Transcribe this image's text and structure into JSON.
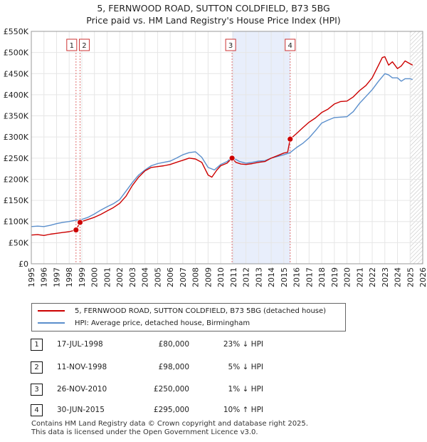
{
  "header": {
    "title_line1": "5, FERNWOOD ROAD, SUTTON COLDFIELD, B73 5BG",
    "title_line2": "Price paid vs. HM Land Registry's House Price Index (HPI)"
  },
  "legend": {
    "property_label": "5, FERNWOOD ROAD, SUTTON COLDFIELD, B73 5BG (detached house)",
    "hpi_label": "HPI: Average price, detached house, Birmingham"
  },
  "colors": {
    "property": "#cc0000",
    "hpi": "#5b8fcc",
    "shade": "#e8eefb",
    "marker_line": "#e07070",
    "grid": "#e6e6e6"
  },
  "transactions": [
    {
      "num": "1",
      "date": "17-JUL-1998",
      "price": "£80,000",
      "hpi": "23% ↓ HPI"
    },
    {
      "num": "2",
      "date": "11-NOV-1998",
      "price": "£98,000",
      "hpi": "5% ↓ HPI"
    },
    {
      "num": "3",
      "date": "26-NOV-2010",
      "price": "£250,000",
      "hpi": "1% ↓ HPI"
    },
    {
      "num": "4",
      "date": "30-JUN-2015",
      "price": "£295,000",
      "hpi": "10% ↑ HPI"
    }
  ],
  "footer": {
    "line1": "Contains HM Land Registry data © Crown copyright and database right 2025.",
    "line2": "This data is licensed under the Open Government Licence v3.0."
  },
  "chart_data": {
    "type": "line",
    "title": "5, FERNWOOD ROAD, SUTTON COLDFIELD, B73 5BG",
    "subtitle": "Price paid vs. HM Land Registry's House Price Index (HPI)",
    "xlabel": "",
    "ylabel": "",
    "xlim": [
      1995,
      2026
    ],
    "ylim": [
      0,
      550000
    ],
    "x_ticks": [
      1995,
      1996,
      1997,
      1998,
      1999,
      2000,
      2001,
      2002,
      2003,
      2004,
      2005,
      2006,
      2007,
      2008,
      2009,
      2010,
      2011,
      2012,
      2013,
      2014,
      2015,
      2016,
      2017,
      2018,
      2019,
      2020,
      2021,
      2022,
      2023,
      2024,
      2025,
      2026
    ],
    "y_ticks": [
      {
        "value": 0,
        "label": "£0"
      },
      {
        "value": 50000,
        "label": "£50K"
      },
      {
        "value": 100000,
        "label": "£100K"
      },
      {
        "value": 150000,
        "label": "£150K"
      },
      {
        "value": 200000,
        "label": "£200K"
      },
      {
        "value": 250000,
        "label": "£250K"
      },
      {
        "value": 300000,
        "label": "£300K"
      },
      {
        "value": 350000,
        "label": "£350K"
      },
      {
        "value": 400000,
        "label": "£400K"
      },
      {
        "value": 450000,
        "label": "£450K"
      },
      {
        "value": 500000,
        "label": "£500K"
      },
      {
        "value": 550000,
        "label": "£550K"
      }
    ],
    "grid": true,
    "shaded_span": [
      2010.9,
      2015.5
    ],
    "future_hatch_from": 2025.0,
    "sale_markers": [
      {
        "label": "1",
        "x": 1998.54,
        "y": 80000
      },
      {
        "label": "2",
        "x": 1998.86,
        "y": 98000
      },
      {
        "label": "3",
        "x": 2010.9,
        "y": 250000
      },
      {
        "label": "4",
        "x": 2015.5,
        "y": 295000
      }
    ],
    "series": [
      {
        "name": "5, FERNWOOD ROAD, SUTTON COLDFIELD, B73 5BG (detached house)",
        "x": [
          1995.0,
          1995.5,
          1996.0,
          1996.5,
          1997.0,
          1997.5,
          1998.0,
          1998.54,
          1998.86,
          1999.0,
          1999.5,
          2000.0,
          2000.5,
          2001.0,
          2001.5,
          2002.0,
          2002.5,
          2003.0,
          2003.5,
          2004.0,
          2004.5,
          2005.0,
          2005.5,
          2006.0,
          2006.5,
          2007.0,
          2007.5,
          2008.0,
          2008.5,
          2009.0,
          2009.3,
          2009.7,
          2010.0,
          2010.5,
          2010.9,
          2011.2,
          2011.6,
          2012.0,
          2012.5,
          2013.0,
          2013.5,
          2014.0,
          2014.5,
          2015.0,
          2015.3,
          2015.5,
          2016.0,
          2016.5,
          2017.0,
          2017.5,
          2018.0,
          2018.5,
          2019.0,
          2019.5,
          2020.0,
          2020.5,
          2021.0,
          2021.5,
          2022.0,
          2022.5,
          2022.8,
          2023.0,
          2023.3,
          2023.6,
          2024.0,
          2024.3,
          2024.6,
          2024.9,
          2025.2
        ],
        "values": [
          68000,
          69000,
          67000,
          70000,
          72000,
          74000,
          76000,
          80000,
          98000,
          100000,
          105000,
          110000,
          117000,
          125000,
          133000,
          143000,
          160000,
          185000,
          205000,
          220000,
          228000,
          230000,
          232000,
          235000,
          240000,
          245000,
          250000,
          248000,
          240000,
          210000,
          205000,
          222000,
          232000,
          238000,
          250000,
          240000,
          236000,
          235000,
          237000,
          240000,
          242000,
          250000,
          256000,
          262000,
          264000,
          295000,
          308000,
          322000,
          335000,
          345000,
          358000,
          366000,
          378000,
          384000,
          385000,
          395000,
          410000,
          422000,
          440000,
          470000,
          488000,
          490000,
          470000,
          478000,
          462000,
          468000,
          480000,
          475000,
          470000
        ]
      },
      {
        "name": "HPI: Average price, detached house, Birmingham",
        "x": [
          1995.0,
          1995.5,
          1996.0,
          1996.5,
          1997.0,
          1997.5,
          1998.0,
          1998.5,
          1999.0,
          1999.5,
          2000.0,
          2000.5,
          2001.0,
          2001.5,
          2002.0,
          2002.5,
          2003.0,
          2003.5,
          2004.0,
          2004.5,
          2005.0,
          2005.5,
          2006.0,
          2006.5,
          2007.0,
          2007.5,
          2008.0,
          2008.5,
          2009.0,
          2009.5,
          2010.0,
          2010.5,
          2010.9,
          2011.5,
          2012.0,
          2012.5,
          2013.0,
          2013.5,
          2014.0,
          2014.5,
          2015.0,
          2015.5,
          2016.0,
          2016.5,
          2017.0,
          2017.5,
          2018.0,
          2018.5,
          2019.0,
          2019.5,
          2020.0,
          2020.5,
          2021.0,
          2021.5,
          2022.0,
          2022.5,
          2023.0,
          2023.3,
          2023.6,
          2024.0,
          2024.3,
          2024.6,
          2025.0,
          2025.2
        ],
        "values": [
          88000,
          89000,
          88000,
          91000,
          95000,
          98000,
          100000,
          103000,
          105000,
          110000,
          118000,
          127000,
          135000,
          142000,
          152000,
          172000,
          192000,
          210000,
          222000,
          232000,
          237000,
          240000,
          243000,
          250000,
          258000,
          263000,
          265000,
          252000,
          228000,
          222000,
          235000,
          242000,
          252000,
          242000,
          238000,
          240000,
          243000,
          244000,
          250000,
          254000,
          258000,
          263000,
          275000,
          285000,
          298000,
          315000,
          333000,
          340000,
          346000,
          347000,
          348000,
          360000,
          380000,
          396000,
          412000,
          432000,
          450000,
          447000,
          440000,
          440000,
          432000,
          438000,
          438000,
          436000
        ]
      }
    ]
  }
}
